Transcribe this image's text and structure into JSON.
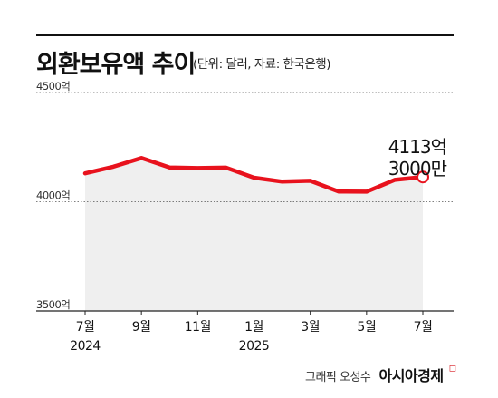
{
  "header": {
    "title": "외환보유액 추이",
    "subtitle": "(단위: 달러, 자료: 한국은행)"
  },
  "footer": {
    "credit_prefix": "그래픽 오성수",
    "brand": "아시아경제",
    "brand_mark": "◻"
  },
  "colors": {
    "line": "#e8121d",
    "area": "#efefef",
    "text": "#111111",
    "grid": "#555555"
  },
  "chart_data": {
    "type": "area",
    "title": "외환보유액 추이",
    "subtitle": "(단위: 달러, 자료: 한국은행)",
    "x": [
      "2024-07",
      "2024-08",
      "2024-09",
      "2024-10",
      "2024-11",
      "2024-12",
      "2025-01",
      "2025-02",
      "2025-03",
      "2025-04",
      "2025-05",
      "2025-06",
      "2025-07"
    ],
    "x_tick_labels": [
      {
        "month": "2024-07",
        "label": "7월",
        "sub": "2024"
      },
      {
        "month": "2024-09",
        "label": "9월"
      },
      {
        "month": "2024-11",
        "label": "11월"
      },
      {
        "month": "2025-01",
        "label": "1월",
        "sub": "2025"
      },
      {
        "month": "2025-03",
        "label": "3월"
      },
      {
        "month": "2025-05",
        "label": "5월"
      },
      {
        "month": "2025-07",
        "label": "7월"
      }
    ],
    "series": [
      {
        "values": [
          4130,
          4160,
          4200,
          4157,
          4154,
          4156,
          4110,
          4092,
          4096,
          4047,
          4046,
          4100,
          4113.3
        ]
      }
    ],
    "ylim": [
      3500,
      4500
    ],
    "yticks": [
      3500,
      4000,
      4500
    ],
    "y_tick_labels": [
      "3500억",
      "4000억",
      "4500억"
    ],
    "y_unit": "억",
    "annotation": {
      "month": "2025-07",
      "line1": "4113억",
      "line2": "3000만"
    }
  }
}
